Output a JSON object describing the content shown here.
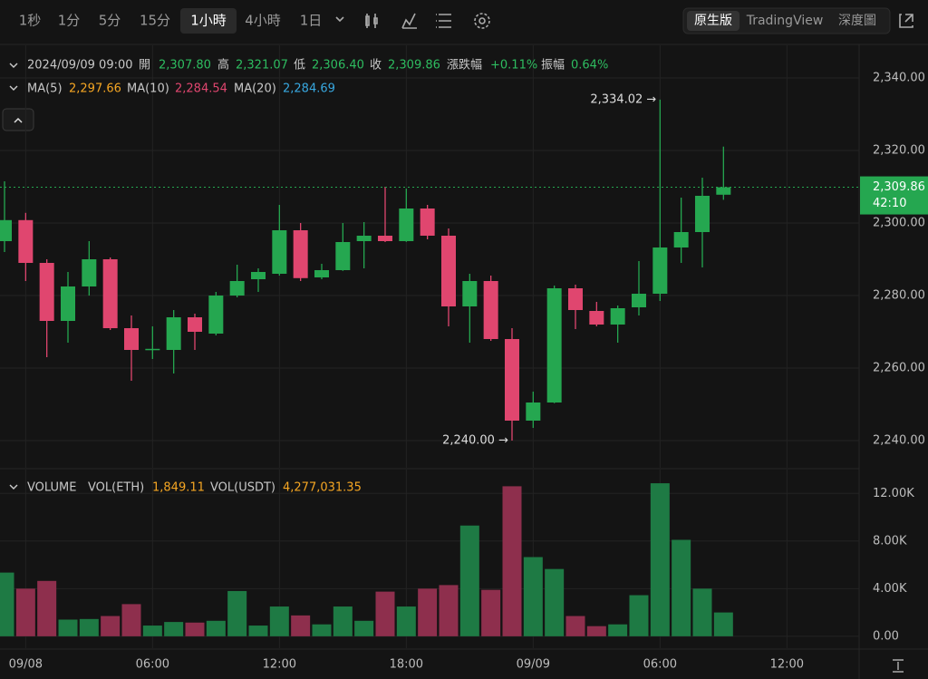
{
  "toolbar": {
    "intervals": [
      "1秒",
      "1分",
      "5分",
      "15分",
      "1小時",
      "4小時",
      "1日"
    ],
    "views": [
      "原生版",
      "TradingView",
      "深度圖"
    ]
  },
  "info": {
    "date": "2024/09/09 09:00",
    "open_label": "開",
    "open": "2,307.80",
    "high_label": "高",
    "high": "2,321.07",
    "low_label": "低",
    "low": "2,306.40",
    "close_label": "收",
    "close": "2,309.86",
    "change_label": "漲跌幅",
    "change": "+0.11%",
    "amplitude_label": "振幅",
    "amplitude": "0.64%",
    "ma5_label": "MA(5)",
    "ma5": "2,297.66",
    "ma10_label": "MA(10)",
    "ma10": "2,284.54",
    "ma20_label": "MA(20)",
    "ma20": "2,284.69",
    "volume_label": "VOLUME",
    "vol_eth_label": "VOL(ETH)",
    "vol_eth": "1,849.11",
    "vol_usdt_label": "VOL(USDT)",
    "vol_usdt": "4,277,031.35",
    "last_price": "2,309.86",
    "countdown": "42:10"
  },
  "chart_data": [
    {
      "type": "candlestick",
      "up_color": "#25a750",
      "down_color": "#e0466f",
      "grid": true,
      "categories": [
        null,
        "09/08",
        null,
        null,
        null,
        null,
        null,
        "06:00",
        null,
        null,
        null,
        null,
        null,
        "12:00",
        null,
        null,
        null,
        null,
        null,
        "18:00",
        null,
        null,
        null,
        null,
        null,
        "09/09",
        null,
        null,
        null,
        null,
        null,
        "06:00",
        null,
        null,
        null,
        null,
        null,
        "12:00"
      ],
      "open": [
        2295,
        2300.8,
        2289,
        2273,
        2282.5,
        2290,
        2271,
        2265,
        2265,
        2274,
        2269.5,
        2280,
        2284.5,
        2286,
        2298,
        2285,
        2287,
        2295,
        2296.5,
        2295,
        2304,
        2296.5,
        2277,
        2284,
        2268,
        2245.5,
        2250.5,
        2282,
        2275.75,
        2272,
        2276.75,
        2280.5,
        2293.25,
        2297.5,
        2307.8,
        null,
        null,
        null
      ],
      "high": [
        2311.5,
        2302.8,
        2290,
        2286.5,
        2295,
        2290.5,
        2274.5,
        2271.5,
        2276,
        2275,
        2281,
        2288.5,
        2287.5,
        2305,
        2300,
        2288.75,
        2300,
        2300.25,
        2310,
        2309.5,
        2305,
        2298.5,
        2286,
        2285.5,
        2271,
        2253.5,
        2282.75,
        2283,
        2278.25,
        2277.25,
        2289.5,
        2334.02,
        2307,
        2312.5,
        2321.07,
        null,
        null,
        null
      ],
      "low": [
        2292,
        2284,
        2263,
        2267,
        2280,
        2270.5,
        2256.5,
        2262.5,
        2258.5,
        2265,
        2269,
        2279.5,
        2281,
        2285.5,
        2284,
        2284.5,
        2286.8,
        2287.5,
        2294.75,
        2294.8,
        2295.5,
        2271.5,
        2267,
        2267.5,
        2240,
        2243.5,
        2250.3,
        2270.75,
        2271.5,
        2267,
        2274.5,
        2278.5,
        2289,
        2287.75,
        2306.4,
        null,
        null,
        null
      ],
      "close": [
        2300.8,
        2289,
        2273,
        2282.5,
        2290,
        2271,
        2265,
        2265.3,
        2274,
        2270,
        2280,
        2284,
        2286.5,
        2298,
        2284.8,
        2287,
        2294.75,
        2296.5,
        2295,
        2304,
        2296.5,
        2277,
        2284,
        2268,
        2245.5,
        2250.5,
        2282,
        2276,
        2272,
        2276.5,
        2280.5,
        2293.25,
        2297.5,
        2307.5,
        2309.86,
        null,
        null,
        null
      ],
      "ylim": [
        2232.5,
        2349
      ],
      "yticks": [
        {
          "value": 2240,
          "label": "2,240.00"
        },
        {
          "value": 2260,
          "label": "2,260.00"
        },
        {
          "value": 2280,
          "label": "2,280.00"
        },
        {
          "value": 2300,
          "label": "2,300.00"
        },
        {
          "value": 2320,
          "label": "2,320.00"
        },
        {
          "value": 2340,
          "label": "2,340.00"
        }
      ],
      "annotations": [
        "2,334.02 →",
        "2,240.00 →"
      ]
    },
    {
      "type": "bar",
      "up_color": "#1e7a44",
      "down_color": "#8e2f4d",
      "grid": true,
      "values": [
        5350,
        4000,
        4650,
        1400,
        1450,
        1700,
        2700,
        900,
        1200,
        1150,
        1300,
        3800,
        900,
        2500,
        1750,
        1000,
        2500,
        1300,
        3750,
        2500,
        4000,
        4300,
        9300,
        3900,
        12600,
        6650,
        5650,
        1700,
        850,
        1000,
        3450,
        12850,
        8100,
        4000,
        2000,
        null,
        null,
        null
      ],
      "ylim": [
        -1000,
        14000
      ],
      "yticks": [
        {
          "value": 0,
          "label": "0.00"
        },
        {
          "value": 4000,
          "label": "4.00K"
        },
        {
          "value": 8000,
          "label": "8.00K"
        },
        {
          "value": 12000,
          "label": "12.00K"
        }
      ]
    }
  ]
}
